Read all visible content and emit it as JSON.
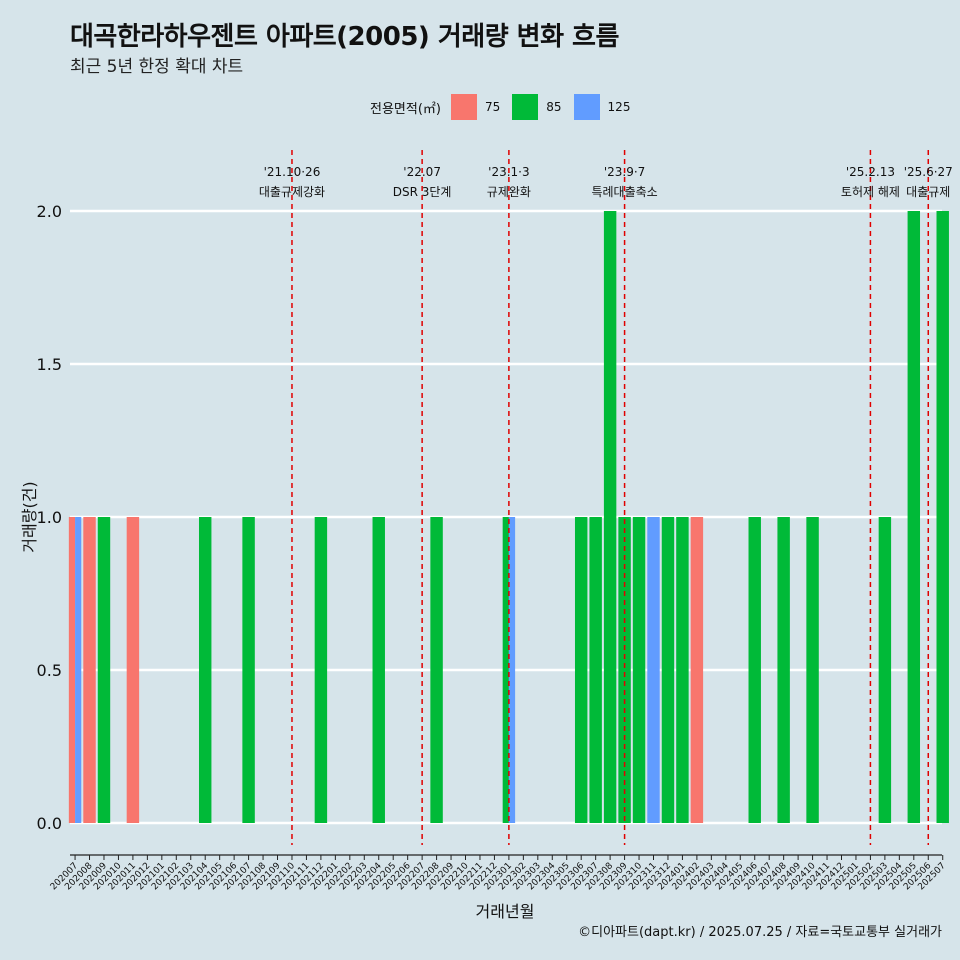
{
  "title": "대곡한라하우젠트 아파트(2005) 거래량 변화 흐름",
  "subtitle": "최근 5년 한정 확대 차트",
  "caption": "©디아파트(dapt.kr) / 2025.07.25 / 자료=국토교통부 실거래가",
  "legend": {
    "title": "전용면적(㎡)",
    "items": [
      {
        "label": "75",
        "color": "#f8766d"
      },
      {
        "label": "85",
        "color": "#00ba38"
      },
      {
        "label": "125",
        "color": "#619cff"
      }
    ]
  },
  "chart_data": {
    "type": "bar",
    "xlabel": "거래년월",
    "ylabel": "거래량(건)",
    "ylim": [
      0,
      2
    ],
    "yticks": [
      "0.0",
      "0.5",
      "1.0",
      "1.5",
      "2.0"
    ],
    "grid": "horizontal",
    "legend_position": "top",
    "categories": [
      "202007",
      "202008",
      "202009",
      "202010",
      "202011",
      "202012",
      "202101",
      "202102",
      "202103",
      "202104",
      "202105",
      "202106",
      "202107",
      "202108",
      "202109",
      "202110",
      "202111",
      "202112",
      "202201",
      "202202",
      "202203",
      "202204",
      "202205",
      "202206",
      "202207",
      "202208",
      "202209",
      "202210",
      "202211",
      "202212",
      "202301",
      "202302",
      "202303",
      "202304",
      "202305",
      "202306",
      "202307",
      "202308",
      "202309",
      "202310",
      "202311",
      "202312",
      "202401",
      "202402",
      "202403",
      "202404",
      "202405",
      "202406",
      "202407",
      "202408",
      "202409",
      "202410",
      "202411",
      "202412",
      "202501",
      "202502",
      "202503",
      "202504",
      "202505",
      "202506",
      "202507"
    ],
    "series": [
      {
        "name": "75",
        "color": "#f8766d",
        "values": [
          1,
          1,
          0,
          0,
          1,
          0,
          0,
          0,
          0,
          0,
          0,
          0,
          0,
          0,
          0,
          0,
          0,
          0,
          0,
          0,
          0,
          0,
          0,
          0,
          0,
          0,
          0,
          0,
          0,
          0,
          0,
          0,
          0,
          0,
          0,
          0,
          0,
          0,
          0,
          0,
          0,
          0,
          0,
          1,
          0,
          0,
          0,
          0,
          0,
          0,
          0,
          0,
          0,
          0,
          0,
          0,
          0,
          0,
          0,
          0,
          0
        ]
      },
      {
        "name": "85",
        "color": "#00ba38",
        "values": [
          0,
          0,
          1,
          0,
          0,
          0,
          0,
          0,
          0,
          1,
          0,
          0,
          1,
          0,
          0,
          0,
          0,
          1,
          0,
          0,
          0,
          1,
          0,
          0,
          0,
          1,
          0,
          0,
          0,
          0,
          1,
          0,
          0,
          0,
          0,
          1,
          1,
          2,
          1,
          1,
          0,
          1,
          1,
          0,
          0,
          0,
          0,
          1,
          0,
          1,
          0,
          1,
          0,
          0,
          0,
          0,
          1,
          0,
          2,
          0,
          2
        ]
      },
      {
        "name": "125",
        "color": "#619cff",
        "values": [
          1,
          0,
          0,
          0,
          0,
          0,
          0,
          0,
          0,
          0,
          0,
          0,
          0,
          0,
          0,
          0,
          0,
          0,
          0,
          0,
          0,
          0,
          0,
          0,
          0,
          0,
          0,
          0,
          0,
          0,
          1,
          0,
          0,
          0,
          0,
          0,
          0,
          0,
          0,
          0,
          1,
          0,
          0,
          0,
          0,
          0,
          0,
          0,
          0,
          0,
          0,
          0,
          0,
          0,
          0,
          0,
          0,
          0,
          0,
          0,
          0
        ]
      }
    ],
    "annotations": [
      {
        "x": "202110",
        "date": "'21.10·26",
        "text": "대출규제강화"
      },
      {
        "x": "202207",
        "date": "'22.07",
        "text": "DSR 3단계"
      },
      {
        "x": "202301",
        "date": "'23.1·3",
        "text": "규제완화"
      },
      {
        "x": "202309",
        "date": "'23.9·7",
        "text": "특례대출축소"
      },
      {
        "x": "202502",
        "date": "'25.2.13",
        "text": "토허제 해제"
      },
      {
        "x": "202506",
        "date": "'25.6·27",
        "text": "대출규제"
      }
    ]
  }
}
